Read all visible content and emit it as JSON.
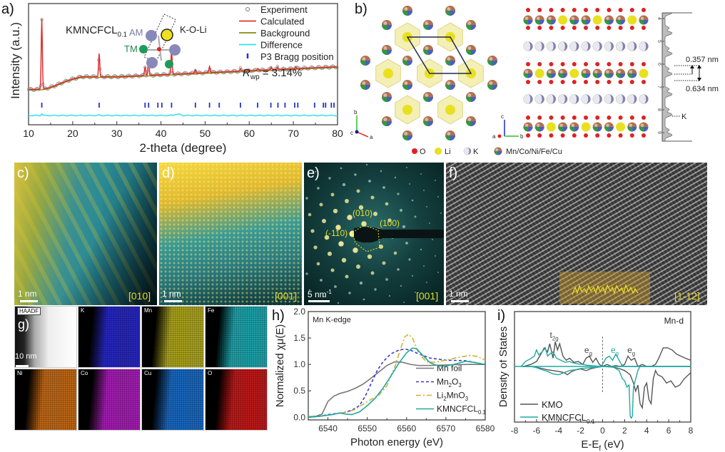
{
  "panels": {
    "a": "a)",
    "b": "b)",
    "c": "c)",
    "d": "d)",
    "e": "e)",
    "f": "f)",
    "g": "g)",
    "h": "h)",
    "i": "i)"
  },
  "chart_data": [
    {
      "id": "a",
      "type": "line",
      "title": "",
      "annotation": "KMNCFCL",
      "annotation_sub": "0.1",
      "xlabel": "2-theta (degree)",
      "ylabel": "Intensity (a.u.)",
      "xlim": [
        10,
        80
      ],
      "xticks": [
        10,
        20,
        30,
        40,
        50,
        60,
        70,
        80
      ],
      "yticks_shown": false,
      "legend": {
        "placement": "top-right",
        "entries": [
          {
            "name": "Experiment",
            "style": "circle",
            "color": "#777777"
          },
          {
            "name": "Calculated",
            "style": "line",
            "color": "#e03030"
          },
          {
            "name": "Background",
            "style": "line",
            "color": "#8a8a10"
          },
          {
            "name": "Difference",
            "style": "line",
            "color": "#33e0ee"
          },
          {
            "name": "P3 Bragg position",
            "style": "tick",
            "color": "#2233cc"
          }
        ]
      },
      "rwp_label": "R",
      "rwp_sub": "wp",
      "rwp_value": "= 3.14%",
      "inset": {
        "labels": [
          "AM",
          "K-O-Li",
          "TM"
        ]
      },
      "peaks": [
        {
          "x": 13.0,
          "h": 0.82
        },
        {
          "x": 26.0,
          "h": 0.27
        },
        {
          "x": 36.4,
          "h": 0.1
        },
        {
          "x": 37.2,
          "h": 0.18
        },
        {
          "x": 42.4,
          "h": 0.28
        },
        {
          "x": 47.8,
          "h": 0.04
        },
        {
          "x": 51.0,
          "h": 0.07
        },
        {
          "x": 58.0,
          "h": 0.03
        },
        {
          "x": 62.0,
          "h": 0.02
        },
        {
          "x": 65.0,
          "h": 0.03
        },
        {
          "x": 66.4,
          "h": 0.03
        },
        {
          "x": 70.5,
          "h": 0.02
        }
      ],
      "bragg_positions": [
        13.0,
        26.0,
        36.4,
        37.2,
        39.3,
        40.2,
        42.4,
        47.8,
        51.0,
        53.2,
        58.0,
        61.9,
        64.9,
        66.5,
        68.1,
        70.3,
        71.0,
        74.8,
        76.8,
        77.3,
        78.6,
        79.2
      ]
    },
    {
      "id": "h",
      "type": "line",
      "annotation": "Mn K-edge",
      "xlabel": "Photon energy (eV)",
      "ylabel": "Normalized χμ(E)",
      "xlim": [
        6535,
        6580
      ],
      "ylim": [
        -0.05,
        2.0
      ],
      "xticks": [
        6540,
        6550,
        6560,
        6570,
        6580
      ],
      "yticks": [
        0.0,
        0.5,
        1.0,
        1.5,
        2.0
      ],
      "ytick_labels": [
        "0.0",
        "0.5",
        "1.0",
        "1.5",
        "2.0"
      ],
      "legend": {
        "placement": "bottom-right"
      },
      "series": [
        {
          "name": "Mn foil",
          "sub": "",
          "color": "#777777",
          "dash": "",
          "x": [
            6535,
            6537,
            6538.5,
            6540,
            6541.5,
            6543,
            6545,
            6547,
            6549,
            6551,
            6553,
            6555,
            6557,
            6559,
            6561,
            6563,
            6566,
            6570,
            6575,
            6580
          ],
          "y": [
            0.01,
            0.02,
            0.06,
            0.3,
            0.4,
            0.45,
            0.49,
            0.55,
            0.63,
            0.74,
            0.86,
            0.98,
            1.05,
            1.04,
            1.0,
            0.98,
            0.98,
            0.99,
            1.0,
            1.0
          ]
        },
        {
          "name": "Mn",
          "sub_parts": [
            "Mn",
            "2",
            "O",
            "3"
          ],
          "color": "#3a3acc",
          "dash": "4,3",
          "x": [
            6535,
            6538,
            6540,
            6542,
            6544,
            6546,
            6548,
            6549.5,
            6551,
            6552.5,
            6554,
            6556,
            6558,
            6559.5,
            6561,
            6563,
            6566,
            6570,
            6575,
            6580
          ],
          "y": [
            0.0,
            0.02,
            0.05,
            0.07,
            0.09,
            0.13,
            0.22,
            0.4,
            0.64,
            0.88,
            1.05,
            1.2,
            1.27,
            1.29,
            1.27,
            1.2,
            1.12,
            1.08,
            1.07,
            1.0
          ]
        },
        {
          "name": "Li",
          "sub_parts": [
            "Li",
            "2",
            "MnO",
            "3"
          ],
          "color": "#d4b030",
          "dash": "7,3,2,3",
          "x": [
            6535,
            6538,
            6541,
            6543,
            6545,
            6547,
            6549,
            6551,
            6553,
            6555,
            6557,
            6558.5,
            6559.5,
            6560.5,
            6561.5,
            6563,
            6565,
            6567,
            6570,
            6573,
            6576,
            6578,
            6580
          ],
          "y": [
            0.0,
            0.02,
            0.05,
            0.08,
            0.1,
            0.15,
            0.25,
            0.34,
            0.42,
            0.6,
            0.95,
            1.3,
            1.52,
            1.57,
            1.5,
            1.22,
            1.05,
            1.04,
            1.08,
            1.13,
            1.17,
            1.15,
            1.08
          ]
        },
        {
          "name": "KMNCFCL",
          "sub_parts": [
            "KMNCFCL",
            "0.1"
          ],
          "color": "#22a8a0",
          "dash": "",
          "x": [
            6535,
            6538,
            6541,
            6543,
            6544.5,
            6546,
            6548,
            6550,
            6552,
            6554,
            6556,
            6558,
            6560,
            6561.5,
            6562.5,
            6564,
            6566,
            6568,
            6570,
            6572,
            6575,
            6577,
            6580
          ],
          "y": [
            0.0,
            0.02,
            0.05,
            0.08,
            0.06,
            0.05,
            0.1,
            0.22,
            0.36,
            0.55,
            0.78,
            1.02,
            1.22,
            1.31,
            1.3,
            1.18,
            1.03,
            0.97,
            0.97,
            1.0,
            1.06,
            1.04,
            1.0
          ]
        }
      ]
    },
    {
      "id": "i",
      "type": "line",
      "annotation": "Mn-d",
      "xlabel": "E-E",
      "xlabel_sub": "f",
      "xlabel_suffix": " (eV)",
      "ylabel": "Density of States",
      "xlim": [
        -8,
        8
      ],
      "xticks": [
        -8,
        -6,
        -4,
        -2,
        0,
        2,
        4,
        6,
        8
      ],
      "legend": {
        "placement": "bottom-left"
      },
      "peak_labels": [
        {
          "text": "t",
          "sub": "2g",
          "x": -4.4,
          "color": "#444444"
        },
        {
          "text": "e",
          "sub": "g",
          "x": -1.3,
          "color": "#444444"
        },
        {
          "text": "e",
          "sub": "g",
          "x": 1.1,
          "color": "#22a8a0"
        },
        {
          "text": "e",
          "sub": "g",
          "x": 2.6,
          "color": "#444444"
        }
      ],
      "series": [
        {
          "name": "KMO",
          "color": "#555555",
          "up_x": [
            -7.2,
            -6.5,
            -6,
            -5.6,
            -5.3,
            -5,
            -4.8,
            -4.5,
            -4.3,
            -4.1,
            -3.9,
            -3.6,
            -3.3,
            -3,
            -2.6,
            -2.2,
            -1.8,
            -1.5,
            -1.2,
            -0.9,
            -0.6,
            -0.3,
            0,
            0.4,
            0.8,
            1.2,
            1.6,
            2,
            2.3,
            2.6,
            2.9,
            3.2,
            3.6,
            4,
            4.4,
            4.8,
            5.1,
            5.5,
            5.9,
            6.3,
            6.7,
            7.1,
            7.5,
            8
          ],
          "up_y": [
            0,
            0.05,
            0.12,
            0.3,
            0.45,
            0.35,
            0.55,
            0.2,
            0.6,
            0.4,
            0.55,
            0.25,
            0.15,
            0.2,
            0.1,
            0.12,
            0.05,
            0.2,
            0.25,
            0.1,
            0.2,
            0.05,
            0,
            0.05,
            0,
            0.02,
            0,
            0.05,
            0.25,
            0.15,
            0.2,
            0,
            0.05,
            0,
            0,
            0.05,
            0.2,
            0.45,
            0.45,
            0.4,
            0.3,
            0.25,
            0.2,
            0.15
          ],
          "dn_x": [
            -7.2,
            -6.5,
            -6,
            -5.5,
            -5,
            -4.5,
            -4,
            -3.5,
            -3.2,
            -2.8,
            -2.4,
            -2,
            -1.5,
            -1,
            -0.5,
            0,
            0.5,
            1,
            1.5,
            2,
            2.5,
            2.8,
            3,
            3.2,
            3.4,
            3.6,
            3.8,
            4,
            4.2,
            4.4,
            4.6,
            4.8,
            5,
            5.4,
            5.8,
            6.2,
            6.6,
            7,
            7.4,
            7.8,
            8
          ],
          "dn_y": [
            0,
            0,
            -0.02,
            -0.05,
            -0.08,
            -0.1,
            -0.12,
            -0.15,
            -0.2,
            -0.12,
            -0.08,
            -0.06,
            -0.1,
            -0.05,
            -0.02,
            0,
            0,
            -0.02,
            -0.05,
            -0.1,
            -0.2,
            -0.4,
            -0.6,
            -0.45,
            -0.9,
            -1.0,
            -0.5,
            -0.4,
            -0.8,
            -0.9,
            -0.3,
            -0.1,
            -0.2,
            -0.25,
            -0.4,
            -0.35,
            -0.5,
            -0.45,
            -0.3,
            -0.2,
            -0.15
          ]
        },
        {
          "name": "KMNCFCL",
          "sub": "0.1",
          "color": "#22a8a0",
          "up_x": [
            -7.4,
            -7,
            -6.6,
            -6.2,
            -6,
            -5.8,
            -5.5,
            -5.2,
            -5,
            -4.8,
            -4.5,
            -4.2,
            -3.8,
            -3.4,
            -3,
            -2.6,
            -2.2,
            -1.8,
            -1.4,
            -1,
            -0.6,
            -0.2,
            0,
            0.3,
            0.6,
            0.9,
            1.2,
            1.4,
            1.7,
            2,
            2.5,
            3,
            4,
            5,
            6,
            8
          ],
          "up_y": [
            0,
            0.12,
            0.18,
            0.25,
            0.4,
            0.28,
            0.35,
            0.45,
            0.25,
            0.3,
            0.35,
            0.2,
            0.15,
            0.1,
            0.12,
            0.08,
            0.06,
            0.05,
            0.03,
            0.02,
            0.01,
            0,
            0.05,
            0.2,
            0.25,
            0.15,
            0.3,
            0.2,
            0.05,
            0,
            0,
            0,
            0,
            0,
            0,
            0
          ],
          "dn_x": [
            -7.4,
            -6.5,
            -6,
            -5.5,
            -5,
            -4.5,
            -4,
            -3.5,
            -3,
            -2.5,
            -2,
            -1.5,
            -1,
            -0.5,
            0,
            0.5,
            1,
            1.5,
            1.8,
            2,
            2.2,
            2.4,
            2.5,
            2.6,
            2.7,
            2.8,
            3,
            3.2,
            3.4,
            3.6,
            4,
            5,
            6,
            8
          ],
          "dn_y": [
            0,
            0,
            -0.03,
            -0.08,
            -0.12,
            -0.18,
            -0.2,
            -0.15,
            -0.1,
            -0.08,
            -0.05,
            -0.04,
            -0.03,
            -0.02,
            0,
            -0.01,
            -0.02,
            -0.1,
            -0.3,
            -0.35,
            -0.5,
            -0.45,
            -1.2,
            -1.25,
            -1.2,
            -0.5,
            -0.3,
            -0.1,
            0,
            0,
            0,
            0,
            0,
            0
          ]
        }
      ]
    }
  ],
  "panel_b": {
    "dspacing_1": "0.357 nm",
    "dspacing_2": "0.634 nm",
    "k_label": "K",
    "profile_ticks": [
      "4",
      "5",
      "6",
      "7",
      "8",
      "9"
    ],
    "axes_left": [
      "b",
      "c",
      "a"
    ],
    "axes_mid": [
      "c",
      "a",
      "b"
    ],
    "legend": [
      {
        "symbol": "O",
        "label": "O",
        "color": "#dd2222"
      },
      {
        "symbol": "Li",
        "label": "Li",
        "color": "#e8e020"
      },
      {
        "symbol": "K",
        "label": "K",
        "color": "#9a9ac8"
      },
      {
        "symbol": "TM",
        "label": "Mn/Co/Ni/Fe/Cu",
        "color": "multi"
      }
    ]
  },
  "panel_c": {
    "scale": "1 nm",
    "zone": "[010]"
  },
  "panel_d": {
    "scale": "1 nm",
    "zone": "[001]"
  },
  "panel_e": {
    "scale": "5 nm",
    "scale_sup": "-1",
    "zone": "[001]",
    "spots": [
      "(010)",
      "(100)",
      "(-110)"
    ]
  },
  "panel_f": {
    "scale": "1 nm",
    "zone": "[1-12]"
  },
  "panel_g": {
    "scale": "10 nm",
    "maps": [
      {
        "label": "HAADF",
        "color": "#ffffff"
      },
      {
        "label": "K",
        "color": "#2a2ad0"
      },
      {
        "label": "Mn",
        "color": "#b8b020"
      },
      {
        "label": "Fe",
        "color": "#20b0b8"
      },
      {
        "label": "Ni",
        "color": "#d07018"
      },
      {
        "label": "Co",
        "color": "#b020c0"
      },
      {
        "label": "Cu",
        "color": "#1a70d0"
      },
      {
        "label": "O",
        "color": "#d01a1a"
      }
    ]
  }
}
